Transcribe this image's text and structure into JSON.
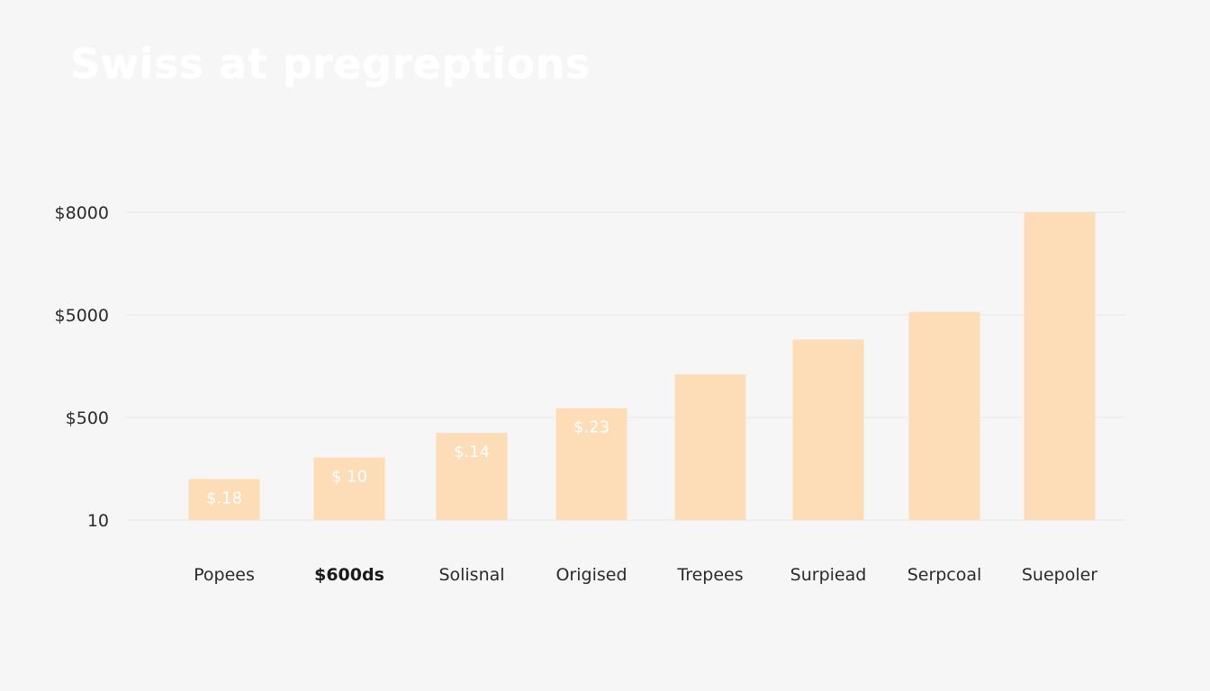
{
  "chart_data": {
    "type": "bar",
    "title": "Swiss at pregreptions",
    "xlabel": "",
    "ylabel": "",
    "grid": true,
    "y_ticks": [
      "$8000",
      "$5000",
      "$500",
      "10"
    ],
    "categories": [
      "Popees",
      "$600ds",
      "Solisnal",
      "Origised",
      "Trepees",
      "Surpiead",
      "Serpcoal",
      "Suepoler"
    ],
    "bold_category": "$600ds",
    "values": [
      0.4,
      0.61,
      0.85,
      1.09,
      1.42,
      1.76,
      2.03,
      3.0
    ],
    "ylim": [
      0,
      3
    ],
    "data_labels": [
      "$.18",
      "$ 10",
      "$.14",
      "$.23",
      "",
      "",
      "",
      ""
    ],
    "colors": {
      "bar": "#fddcb8",
      "grid": "#e8e8e8",
      "background": "#f6f6f6"
    }
  }
}
